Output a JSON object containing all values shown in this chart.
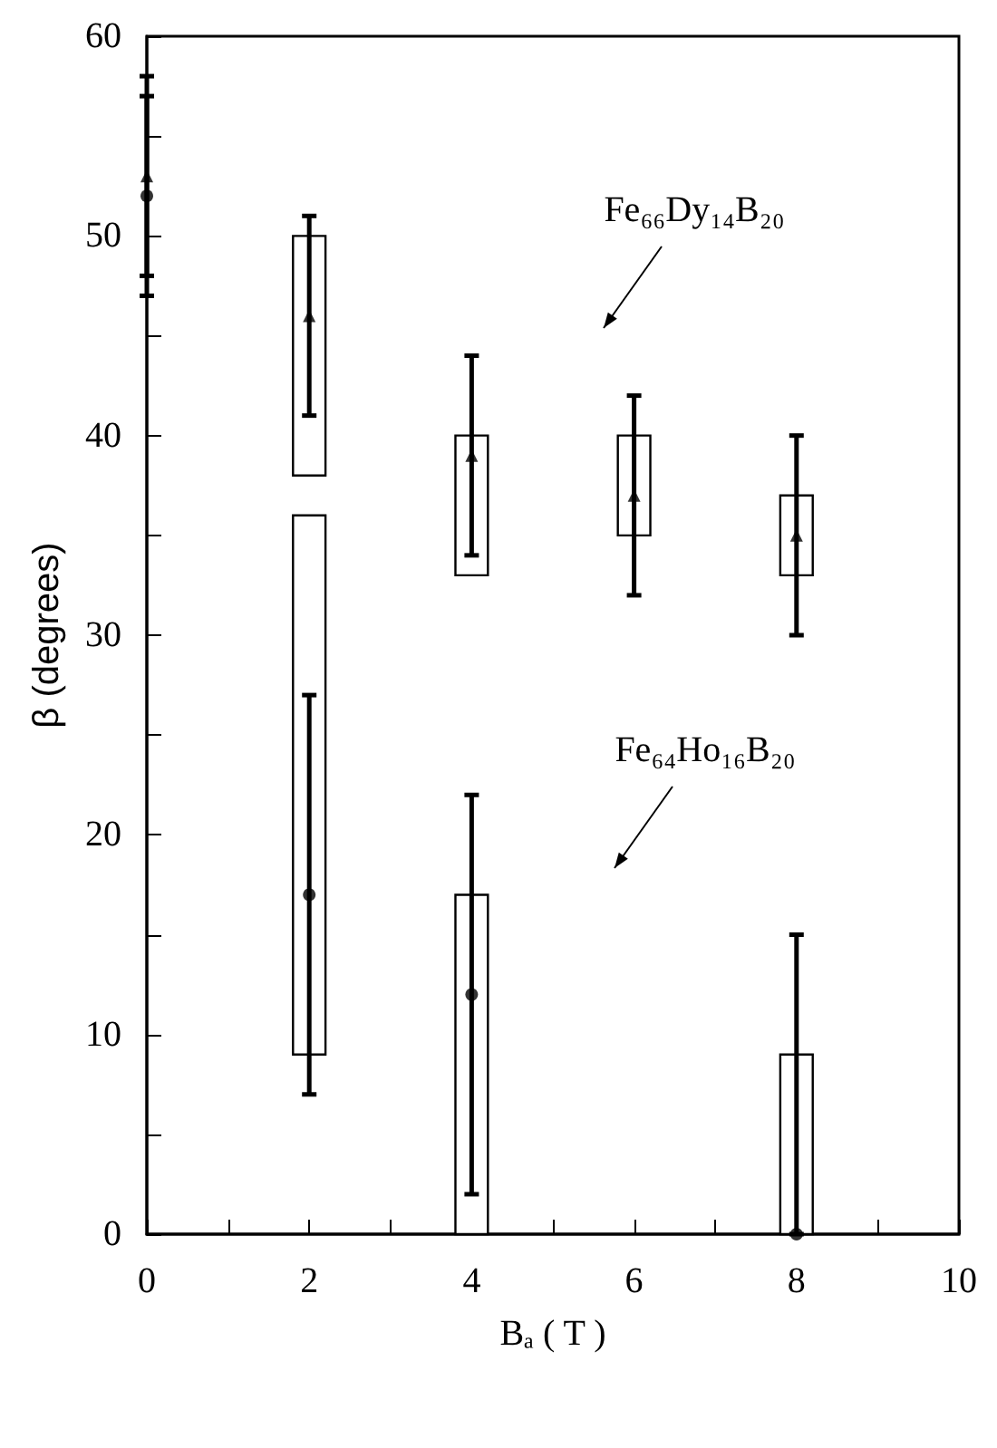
{
  "chart_data": {
    "type": "scatter",
    "xlabel": "Bₐ ( T )",
    "ylabel": "β (degrees)",
    "xlim": [
      0,
      10
    ],
    "xticks": [
      0,
      {
        "value": 1,
        "label": null
      },
      2,
      {
        "value": 3,
        "label": null
      },
      4,
      {
        "value": 5,
        "label": null
      },
      6,
      {
        "value": 7,
        "label": null
      },
      8,
      {
        "value": 9,
        "label": null
      },
      10
    ],
    "ylim": [
      0,
      60
    ],
    "yticks": [
      0,
      {
        "value": 5,
        "label": null
      },
      10,
      {
        "value": 15,
        "label": null
      },
      20,
      {
        "value": 25,
        "label": null
      },
      30,
      {
        "value": 35,
        "label": null
      },
      40,
      {
        "value": 45,
        "label": null
      },
      50,
      {
        "value": 55,
        "label": null
      },
      60
    ],
    "grid": false,
    "series": [
      {
        "type": "bar",
        "color": "#000000",
        "x": [
          2,
          4,
          6,
          8
        ],
        "base": [
          38,
          33,
          35,
          33
        ],
        "values": [
          12,
          7,
          5,
          4
        ]
      },
      {
        "type": "bar",
        "color": "#000000",
        "x": [
          2,
          4,
          8
        ],
        "base": [
          9,
          0,
          0
        ],
        "values": [
          27,
          17,
          9
        ]
      },
      {
        "color": "#000000",
        "marker": "triangle",
        "x": [
          0,
          2,
          4,
          6,
          8
        ],
        "values": [
          53,
          46,
          39,
          37,
          35
        ],
        "errors": [
          [
            48,
            58
          ],
          [
            41,
            51
          ],
          [
            34,
            44
          ],
          [
            32,
            42
          ],
          [
            30,
            40
          ]
        ]
      },
      {
        "color": "#000000",
        "marker": "circle",
        "x": [
          0,
          2,
          4,
          8
        ],
        "values": [
          52,
          17,
          12,
          0
        ],
        "errors": [
          [
            47,
            57
          ],
          [
            7,
            27
          ],
          [
            2,
            22
          ],
          [
            0,
            15
          ]
        ]
      }
    ],
    "annotations": [
      "Fe₆₆Dy₁₄B₂₀",
      "Fe₆₄Ho₁₆B₂₀"
    ]
  }
}
